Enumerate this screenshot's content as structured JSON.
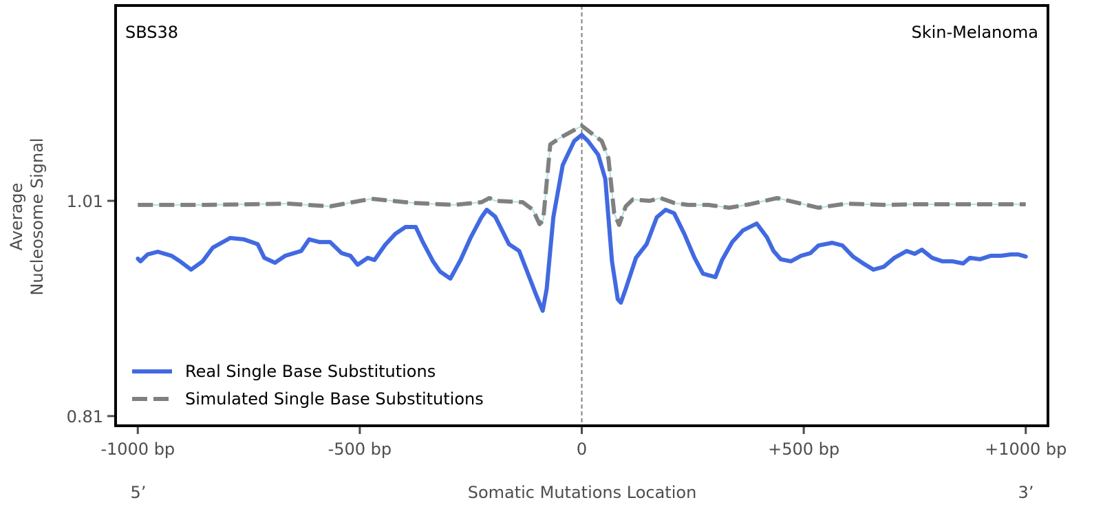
{
  "chart_data": {
    "type": "line",
    "top_left_label": "SBS38",
    "top_right_label": "Skin-Melanoma",
    "xlabel": "Somatic Mutations Location",
    "ylabel_lines": [
      "Average",
      "Nucleosome Signal"
    ],
    "x_end_labels": {
      "left": "5’",
      "right": "3’"
    },
    "xlim": [
      -1050,
      1050
    ],
    "ylim": [
      0.801,
      1.1915
    ],
    "grid": false,
    "legend_placement": "lower-left",
    "x_ticks": [
      {
        "value": -1000,
        "label": "-1000 bp"
      },
      {
        "value": -500,
        "label": "-500 bp"
      },
      {
        "value": 0,
        "label": "0"
      },
      {
        "value": 500,
        "label": "+500 bp"
      },
      {
        "value": 1000,
        "label": "+1000 bp"
      }
    ],
    "y_ticks": [
      {
        "value": 1.01,
        "label": "1.01"
      },
      {
        "value": 0.81,
        "label": "0.81"
      }
    ],
    "reference_line_x": 0,
    "series": [
      {
        "name": "Real Single Base Substitutions",
        "color": "#4169e1",
        "style": "solid",
        "x": [
          -1000,
          -994,
          -978,
          -955,
          -924,
          -905,
          -880,
          -854,
          -831,
          -792,
          -761,
          -730,
          -715,
          -691,
          -668,
          -632,
          -614,
          -591,
          -567,
          -541,
          -521,
          -505,
          -482,
          -467,
          -443,
          -420,
          -397,
          -374,
          -358,
          -335,
          -319,
          -296,
          -273,
          -250,
          -226,
          -214,
          -195,
          -164,
          -141,
          -126,
          -102,
          -88,
          -79,
          -64,
          -43,
          -17,
          0,
          14,
          37,
          53,
          68,
          81,
          88,
          99,
          122,
          146,
          169,
          189,
          208,
          231,
          254,
          273,
          301,
          316,
          339,
          363,
          394,
          417,
          432,
          448,
          471,
          494,
          515,
          533,
          564,
          587,
          611,
          634,
          657,
          680,
          704,
          732,
          750,
          766,
          789,
          812,
          835,
          859,
          874,
          897,
          921,
          944,
          967,
          983,
          1000
        ],
        "y": [
          0.9563,
          0.9538,
          0.9602,
          0.9627,
          0.9589,
          0.9538,
          0.9461,
          0.9538,
          0.9665,
          0.9755,
          0.9742,
          0.9697,
          0.957,
          0.9525,
          0.9589,
          0.9634,
          0.9742,
          0.9717,
          0.9717,
          0.9614,
          0.9589,
          0.9506,
          0.957,
          0.955,
          0.9691,
          0.9793,
          0.9857,
          0.9857,
          0.9717,
          0.9538,
          0.9442,
          0.9378,
          0.955,
          0.9761,
          0.9947,
          1.0017,
          0.9953,
          0.9697,
          0.9634,
          0.9474,
          0.9218,
          0.9078,
          0.9282,
          0.9949,
          1.0432,
          1.0656,
          1.0713,
          1.0656,
          1.0528,
          1.0304,
          0.9538,
          0.9186,
          0.9154,
          0.9282,
          0.957,
          0.9697,
          0.9947,
          1.0017,
          0.9985,
          0.9793,
          0.957,
          0.9423,
          0.9391,
          0.955,
          0.9717,
          0.9825,
          0.9889,
          0.9761,
          0.9634,
          0.9557,
          0.9538,
          0.9589,
          0.9614,
          0.9685,
          0.971,
          0.9685,
          0.9582,
          0.9518,
          0.9461,
          0.9487,
          0.957,
          0.9634,
          0.9608,
          0.9646,
          0.957,
          0.9538,
          0.9538,
          0.9518,
          0.957,
          0.9557,
          0.9589,
          0.9589,
          0.9602,
          0.9602,
          0.9582
        ]
      },
      {
        "name": "Simulated Single Base Substitutions",
        "color": "#808080",
        "underlay_color": "#b0e0e6",
        "style": "dashed",
        "x": [
          -1000,
          -846,
          -660,
          -567,
          -474,
          -381,
          -288,
          -226,
          -208,
          -195,
          -133,
          -110,
          -95,
          -87,
          -71,
          -48,
          0,
          45,
          60,
          73,
          84,
          99,
          115,
          153,
          177,
          208,
          239,
          285,
          332,
          378,
          440,
          487,
          533,
          595,
          688,
          750,
          828,
          1000
        ],
        "y": [
          1.0062,
          1.0062,
          1.0074,
          1.0049,
          1.0119,
          1.0081,
          1.0062,
          1.0087,
          1.0126,
          1.01,
          1.0087,
          1.0017,
          0.9883,
          0.9921,
          1.0624,
          1.0688,
          1.0797,
          1.0656,
          1.0496,
          0.9985,
          0.9876,
          1.0049,
          1.0113,
          1.01,
          1.0126,
          1.0081,
          1.0062,
          1.0062,
          1.0036,
          1.0068,
          1.0126,
          1.0081,
          1.0036,
          1.0074,
          1.0062,
          1.0068,
          1.0068,
          1.0068
        ]
      }
    ]
  }
}
